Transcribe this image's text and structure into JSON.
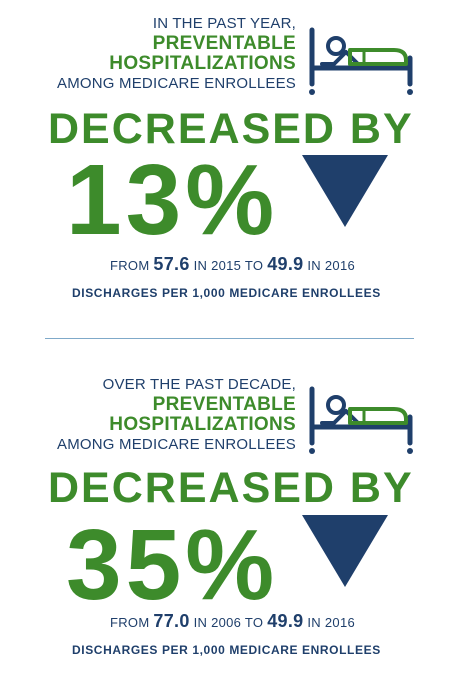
{
  "colors": {
    "green": "#3d8b2b",
    "navy": "#1f3f6b",
    "divider": "#7fa9c9"
  },
  "icons": {
    "bed": "hospital-bed-icon",
    "triangle": "down-triangle-icon"
  },
  "sections": [
    {
      "intro_line1": "IN THE PAST YEAR,",
      "intro_line2": "PREVENTABLE",
      "intro_line3": "HOSPITALIZATIONS",
      "intro_line4": "AMONG MEDICARE ENROLLEES",
      "headline": "DECREASED BY",
      "percent": "13%",
      "from_label": "FROM",
      "from_value": "57.6",
      "from_year_label": "IN 2015 TO",
      "to_value": "49.9",
      "to_year_label": "IN 2016",
      "note": "DISCHARGES PER 1,000 MEDICARE ENROLLEES"
    },
    {
      "intro_line1": "OVER THE PAST DECADE,",
      "intro_line2": "PREVENTABLE",
      "intro_line3": "HOSPITALIZATIONS",
      "intro_line4": "AMONG MEDICARE ENROLLEES",
      "headline": "DECREASED BY",
      "percent": "35%",
      "from_label": "FROM",
      "from_value": "77.0",
      "from_year_label": "IN 2006 TO",
      "to_value": "49.9",
      "to_year_label": "IN 2016",
      "note": "DISCHARGES PER 1,000 MEDICARE ENROLLEES"
    }
  ]
}
